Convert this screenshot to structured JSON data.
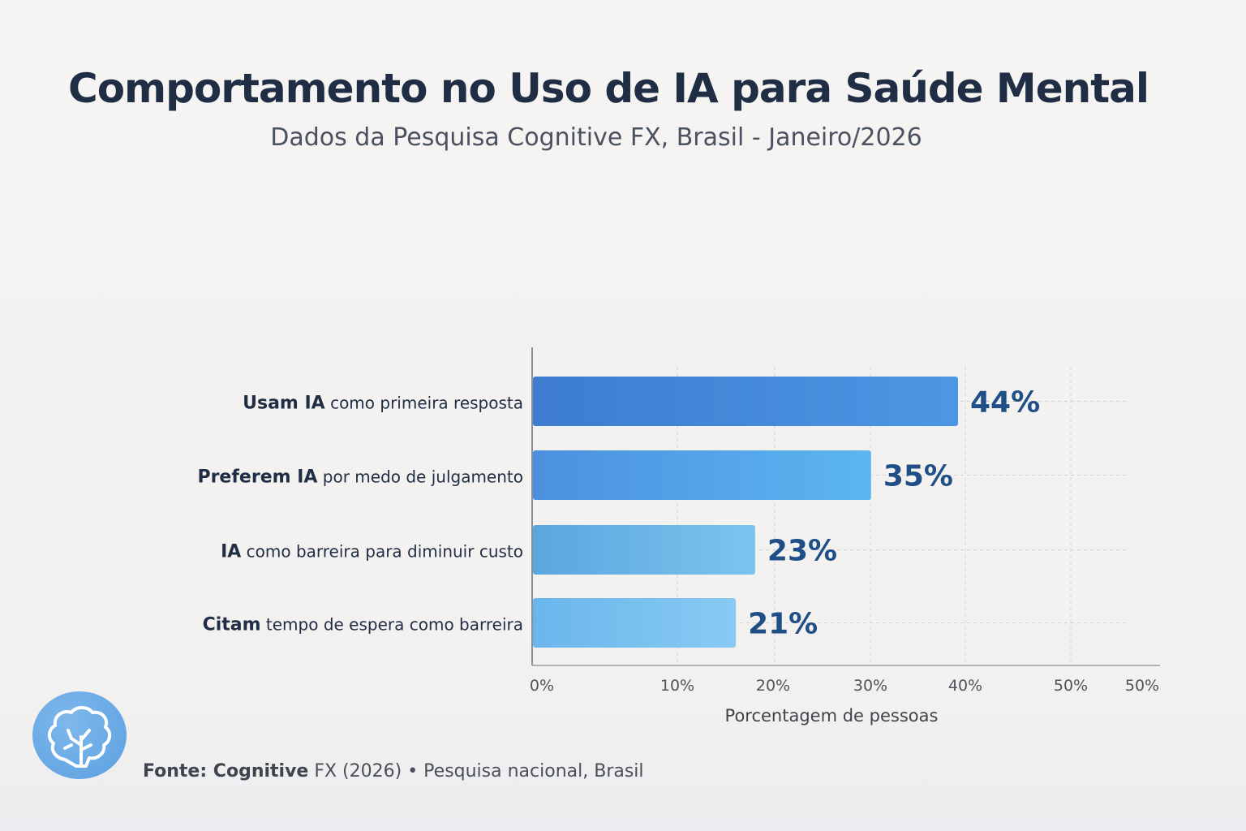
{
  "title": "Comportamento no Uso de IA para Saúde Mental",
  "subtitle": "Dados da Pesquisa Cognitive FX, Brasil - Janeiro/2026",
  "footer": {
    "source_bold": "Fonte: Cognitive",
    "source_rest": " FX (2026) • Pesquisa nacional, Brasil",
    "icon": "brain-icon"
  },
  "chart_data": {
    "type": "bar",
    "orientation": "horizontal",
    "categories": [
      {
        "bold": "Usam IA",
        "rest": " como primeira resposta"
      },
      {
        "bold": "Preferem IA",
        "rest": " por medo de julgamento"
      },
      {
        "bold": "IA",
        "rest": " como barreira para diminuir custo"
      },
      {
        "bold": "Citam",
        "rest": " tempo de espera como barreira"
      }
    ],
    "values": [
      44,
      35,
      23,
      21
    ],
    "data_labels": [
      "44%",
      "35%",
      "23%",
      "21%"
    ],
    "xlabel": "Porcentagem de pessoas",
    "xticks": [
      "0%",
      "10%",
      "20%",
      "30%",
      "40%",
      "50%",
      "50%"
    ],
    "xlim": [
      0,
      50
    ],
    "grid": true,
    "colors": [
      [
        "#3d7ccf",
        "#4c97e4"
      ],
      [
        "#4b90e0",
        "#5cb6f0"
      ],
      [
        "#5aa6df",
        "#7cc4ee"
      ],
      [
        "#6ab6eb",
        "#88caf3"
      ]
    ],
    "label_color": "#1f4f86"
  }
}
